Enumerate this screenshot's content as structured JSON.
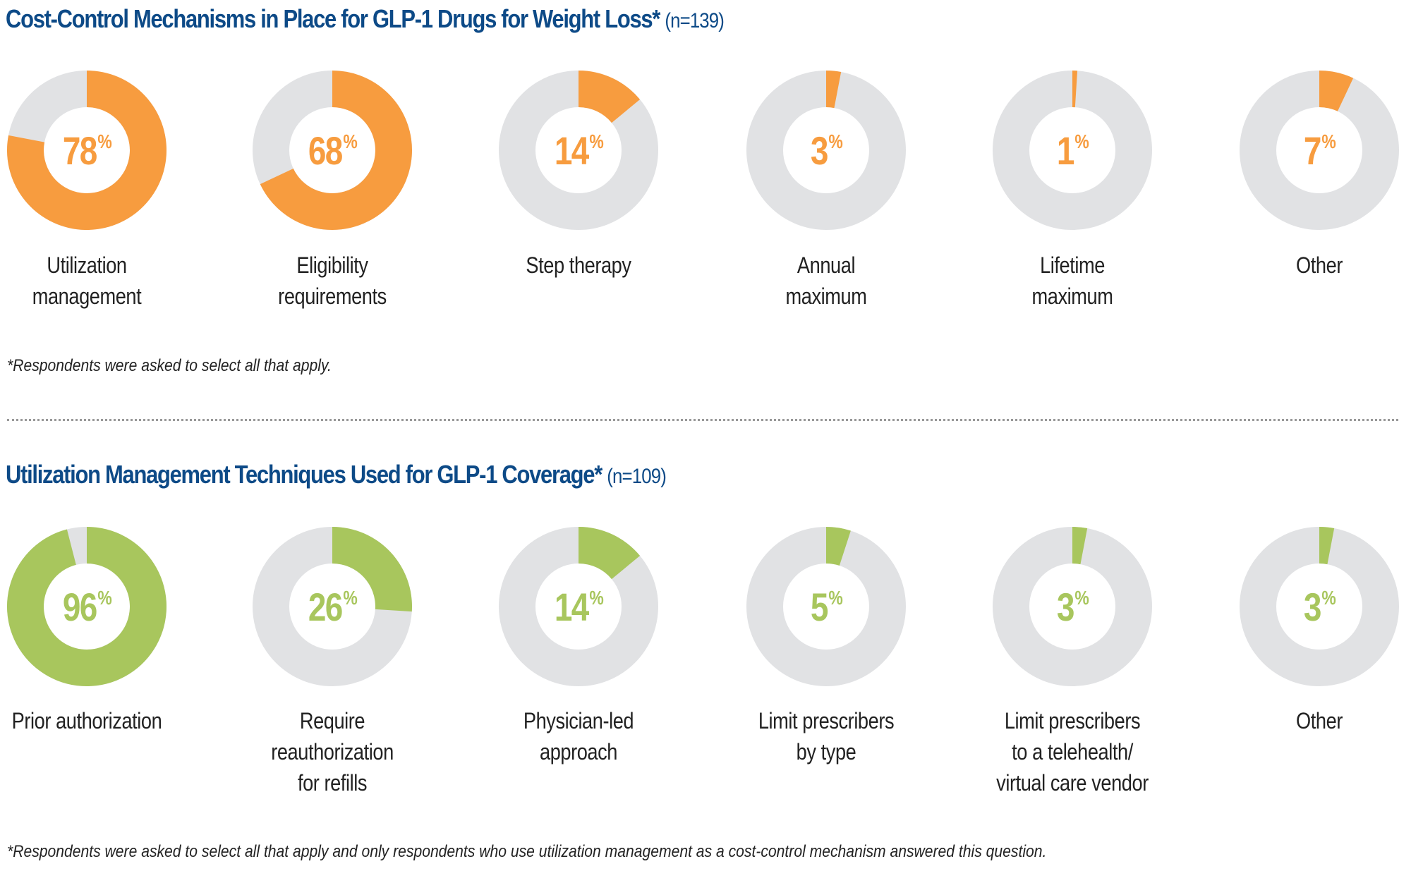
{
  "colors": {
    "orange": "#F79C3F",
    "green": "#A8C65D",
    "track": "#E1E2E4",
    "title": "#0D4A87"
  },
  "chart_data": [
    {
      "type": "pie",
      "title": "Cost-Control Mechanisms in Place for GLP-1 Drugs for Weight Loss*",
      "n": "(n=139)",
      "categories": [
        [
          "Utilization",
          "management"
        ],
        [
          "Eligibility",
          "requirements"
        ],
        [
          "Step therapy"
        ],
        [
          "Annual",
          "maximum"
        ],
        [
          "Lifetime",
          "maximum"
        ],
        [
          "Other"
        ]
      ],
      "values": [
        78,
        68,
        14,
        3,
        1,
        7
      ],
      "footnote": "*Respondents were asked to select all that apply."
    },
    {
      "type": "pie",
      "title": "Utilization Management Techniques Used for GLP-1 Coverage*",
      "n": "(n=109)",
      "categories": [
        [
          "Prior authorization"
        ],
        [
          "Require",
          "reauthorization",
          "for refills"
        ],
        [
          "Physician-led",
          "approach"
        ],
        [
          "Limit prescribers",
          "by type"
        ],
        [
          "Limit prescribers",
          "to a telehealth/",
          "virtual care vendor"
        ],
        [
          "Other"
        ]
      ],
      "values": [
        96,
        26,
        14,
        5,
        3,
        3
      ],
      "footnote": "*Respondents were asked to select all that apply and only respondents who use utilization management as a cost-control mechanism answered this question."
    }
  ],
  "percent_sign": "%"
}
